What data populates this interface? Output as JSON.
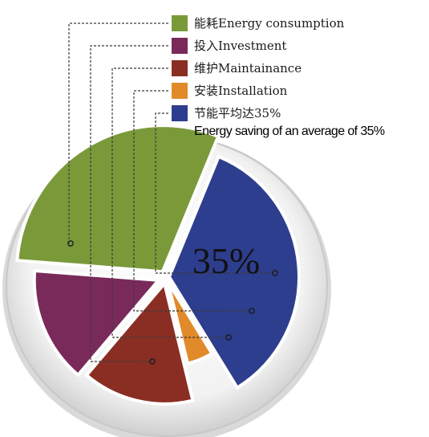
{
  "chart_data": {
    "type": "pie",
    "slices": [
      {
        "label": "能耗Energy consumption",
        "color": "#7a9a3a",
        "value": 30
      },
      {
        "label": "投入Investment",
        "color": "#7a2a5a",
        "value": 15
      },
      {
        "label": "维护Maintainance",
        "color": "#8a2e24",
        "value": 15
      },
      {
        "label": "安装Installation",
        "color": "#e08a2a",
        "value": 5
      },
      {
        "label": "节能平均达35%",
        "sublabel": "Energy saving of an average of 35%",
        "color": "#2e3e8e",
        "value": 35
      }
    ],
    "center_label": "35%"
  }
}
